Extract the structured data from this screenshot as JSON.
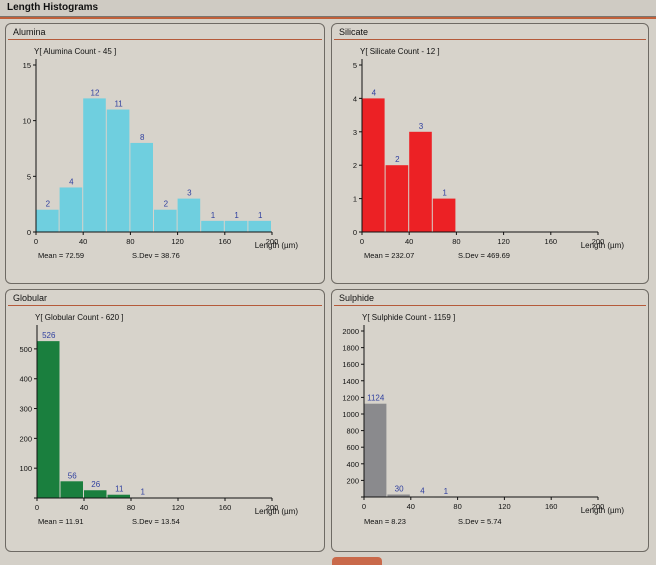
{
  "window": {
    "title": "Length Histograms"
  },
  "panels": [
    {
      "key": "alumina",
      "title": "Alumina",
      "color": "#6fcfdf",
      "ytitle": "Y[ Alumina Count - 45 ]",
      "yticks": [
        0,
        5,
        10,
        15
      ],
      "ymax": 15,
      "xticks": [
        0,
        40,
        80,
        120,
        160,
        200
      ],
      "xlabel": "Length (µm)",
      "mean": "Mean = 72.59",
      "sdev": "S.Dev = 38.76"
    },
    {
      "key": "silicate",
      "title": "Silicate",
      "color": "#ec2125",
      "ytitle": "Y[ Silicate Count - 12 ]",
      "yticks": [
        0,
        1,
        2,
        3,
        4,
        5
      ],
      "ymax": 5,
      "xticks": [
        0,
        40,
        80,
        120,
        160,
        200
      ],
      "xlabel": "Length (µm)",
      "mean": "Mean = 232.07",
      "sdev": "S.Dev = 469.69"
    },
    {
      "key": "globular",
      "title": "Globular",
      "color": "#1a7f3e",
      "ytitle": "Y[ Globular Count - 620 ]",
      "yticks": [
        0,
        100,
        200,
        300,
        400,
        500
      ],
      "ymax": 560,
      "xticks": [
        0,
        40,
        80,
        120,
        160,
        200
      ],
      "xlabel": "Length (µm)",
      "mean": "Mean = 11.91",
      "sdev": "S.Dev = 13.54"
    },
    {
      "key": "sulphide",
      "title": "Sulphide",
      "color": "#8a8a8d",
      "ytitle": "Y[ Sulphide Count - 1159 ]",
      "yticks": [
        0,
        200,
        400,
        600,
        800,
        1000,
        1200,
        1400,
        1600,
        1800,
        2000
      ],
      "ymax": 2000,
      "xticks": [
        0,
        40,
        80,
        120,
        160,
        200
      ],
      "xlabel": "Length (µm)",
      "mean": "Mean = 8.23",
      "sdev": "S.Dev = 5.74"
    }
  ],
  "chart_data": [
    {
      "type": "bar",
      "title": "Alumina",
      "ylabel": "Y[ Alumina Count - 45 ]",
      "xlabel": "Length (µm)",
      "bin_width": 20,
      "x": [
        10,
        30,
        50,
        70,
        90,
        110,
        130,
        150,
        170,
        190
      ],
      "values": [
        2,
        4,
        12,
        11,
        8,
        2,
        3,
        1,
        1,
        1
      ],
      "labels": [
        "2",
        "4",
        "12",
        "11",
        "8",
        "2",
        "3",
        "1",
        "1",
        "1"
      ],
      "xlim": [
        0,
        200
      ],
      "ylim": [
        0,
        15
      ]
    },
    {
      "type": "bar",
      "title": "Silicate",
      "ylabel": "Y[ Silicate Count - 12 ]",
      "xlabel": "Length (µm)",
      "bin_width": 20,
      "x": [
        10,
        30,
        50,
        70
      ],
      "values": [
        4,
        2,
        3,
        1
      ],
      "labels": [
        "4",
        "2",
        "3",
        "1"
      ],
      "xlim": [
        0,
        200
      ],
      "ylim": [
        0,
        5
      ]
    },
    {
      "type": "bar",
      "title": "Globular",
      "ylabel": "Y[ Globular Count - 620 ]",
      "xlabel": "Length (µm)",
      "bin_width": 20,
      "x": [
        10,
        30,
        50,
        70,
        90
      ],
      "values": [
        526,
        56,
        26,
        11,
        1
      ],
      "labels": [
        "526",
        "56",
        "26",
        "11",
        "1"
      ],
      "xlim": [
        0,
        200
      ],
      "ylim": [
        0,
        560
      ]
    },
    {
      "type": "bar",
      "title": "Sulphide",
      "ylabel": "Y[ Sulphide Count - 1159 ]",
      "xlabel": "Length (µm)",
      "bin_width": 20,
      "x": [
        10,
        30,
        50,
        70
      ],
      "values": [
        1124,
        30,
        4,
        1
      ],
      "labels": [
        "1124",
        "30",
        "4",
        "1"
      ],
      "xlim": [
        0,
        200
      ],
      "ylim": [
        0,
        2000
      ]
    }
  ]
}
